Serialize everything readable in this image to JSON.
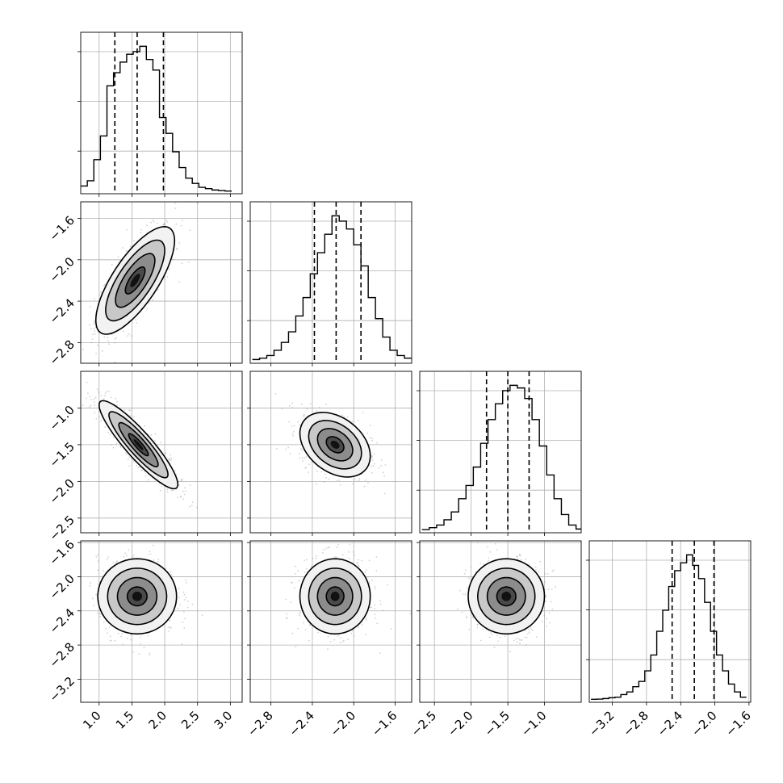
{
  "chart_data": {
    "type": "corner",
    "grid": true,
    "params": [
      {
        "range": [
          0.72,
          3.18
        ],
        "ticks": [
          1.0,
          1.5,
          2.0,
          2.5,
          3.0
        ],
        "tick_labels": [
          "1.0",
          "1.5",
          "2.0",
          "2.5",
          "3.0"
        ],
        "quantiles": [
          1.24,
          1.58,
          1.98
        ]
      },
      {
        "range": [
          -3.0,
          -1.44
        ],
        "ticks": [
          -2.8,
          -2.4,
          -2.0,
          -1.6
        ],
        "tick_labels": [
          "−2.8",
          "−2.4",
          "−2.0",
          "−1.6"
        ],
        "quantiles": [
          -2.38,
          -2.17,
          -1.93
        ]
      },
      {
        "range": [
          -2.7,
          -0.5
        ],
        "ticks": [
          -2.5,
          -2.0,
          -1.5,
          -1.0
        ],
        "tick_labels": [
          "−2.5",
          "−2.0",
          "−1.5",
          "−1.0"
        ],
        "quantiles": [
          -1.79,
          -1.5,
          -1.21
        ]
      },
      {
        "range": [
          -3.47,
          -1.58
        ],
        "ticks": [
          -3.2,
          -2.8,
          -2.4,
          -2.0,
          -1.6
        ],
        "tick_labels": [
          "−3.2",
          "−2.8",
          "−2.4",
          "−2.0",
          "−1.6"
        ],
        "quantiles": [
          -2.5,
          -2.24,
          -2.01
        ]
      }
    ],
    "histograms": [
      {
        "param": 0,
        "bin_edges": [
          0.72,
          0.82,
          0.92,
          1.02,
          1.12,
          1.22,
          1.32,
          1.42,
          1.52,
          1.62,
          1.72,
          1.82,
          1.92,
          2.02,
          2.12,
          2.22,
          2.32,
          2.42,
          2.52,
          2.62,
          2.72,
          2.82,
          2.92,
          3.02
        ],
        "counts": [
          2,
          4,
          12,
          21,
          40,
          45,
          49,
          52,
          53,
          55,
          50,
          46,
          28,
          22,
          15,
          9,
          5,
          3,
          1.5,
          1,
          0.5,
          0.3,
          0.1
        ]
      },
      {
        "param": 1,
        "bin_edges": [
          -2.98,
          -2.91,
          -2.84,
          -2.77,
          -2.7,
          -2.63,
          -2.56,
          -2.49,
          -2.42,
          -2.35,
          -2.28,
          -2.21,
          -2.14,
          -2.07,
          -2.0,
          -1.93,
          -1.86,
          -1.79,
          -1.72,
          -1.65,
          -1.58,
          -1.51,
          -1.44
        ],
        "counts": [
          0.5,
          1,
          2,
          4,
          7,
          11,
          17,
          24,
          33,
          41,
          48,
          55,
          53,
          50,
          44,
          36,
          24,
          16,
          9,
          4,
          2,
          1
        ]
      },
      {
        "param": 2,
        "bin_edges": [
          -2.67,
          -2.57,
          -2.47,
          -2.37,
          -2.27,
          -2.17,
          -2.07,
          -1.97,
          -1.87,
          -1.77,
          -1.67,
          -1.57,
          -1.47,
          -1.37,
          -1.27,
          -1.17,
          -1.07,
          -0.97,
          -0.87,
          -0.77,
          -0.67,
          -0.57,
          -0.5
        ],
        "counts": [
          0.3,
          1,
          2,
          4,
          7,
          12,
          17,
          24,
          33,
          42,
          48,
          53,
          55,
          54,
          50,
          42,
          32,
          21,
          12,
          6,
          2,
          0.5
        ]
      },
      {
        "param": 3,
        "bin_edges": [
          -3.45,
          -3.38,
          -3.31,
          -3.24,
          -3.17,
          -3.1,
          -3.03,
          -2.96,
          -2.89,
          -2.82,
          -2.75,
          -2.68,
          -2.61,
          -2.54,
          -2.47,
          -2.4,
          -2.33,
          -2.26,
          -2.19,
          -2.12,
          -2.05,
          -1.98,
          -1.91,
          -1.84,
          -1.77,
          -1.7,
          -1.63
        ],
        "counts": [
          0.2,
          0.3,
          0.5,
          0.8,
          1,
          2,
          3,
          5,
          7,
          11,
          17,
          26,
          34,
          43,
          49,
          52,
          55,
          51,
          46,
          37,
          26,
          17,
          11,
          6,
          3,
          1
        ]
      }
    ],
    "pairs": [
      {
        "x_param": 0,
        "y_param": 1,
        "center": [
          1.55,
          -2.2
        ],
        "sigma": [
          0.3,
          0.26
        ],
        "rho": 0.74
      },
      {
        "x_param": 0,
        "y_param": 2,
        "center": [
          1.6,
          -1.5
        ],
        "sigma": [
          0.3,
          0.3
        ],
        "rho": -0.9
      },
      {
        "x_param": 1,
        "y_param": 2,
        "center": [
          -2.18,
          -1.5
        ],
        "sigma": [
          0.17,
          0.22
        ],
        "rho": -0.35
      },
      {
        "x_param": 0,
        "y_param": 3,
        "center": [
          1.58,
          -2.23
        ],
        "sigma": [
          0.3,
          0.22
        ],
        "rho": 0.0
      },
      {
        "x_param": 1,
        "y_param": 3,
        "center": [
          -2.18,
          -2.23
        ],
        "sigma": [
          0.17,
          0.22
        ],
        "rho": 0.0
      },
      {
        "x_param": 2,
        "y_param": 3,
        "center": [
          -1.52,
          -2.23
        ],
        "sigma": [
          0.26,
          0.22
        ],
        "rho": 0.0
      }
    ],
    "contour_levels_sigma": [
      0.5,
      1.0,
      1.5,
      2.0
    ]
  }
}
